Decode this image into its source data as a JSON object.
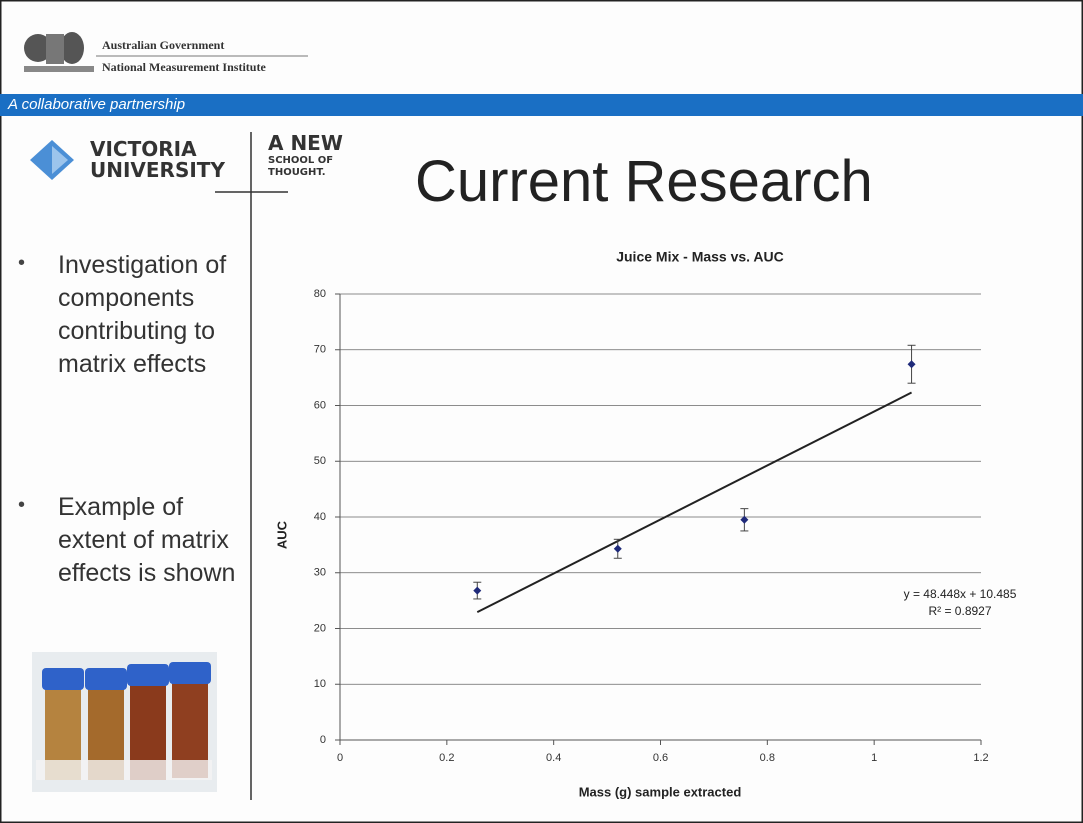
{
  "header": {
    "org_line1": "Australian Government",
    "org_line2": "National Measurement Institute",
    "banner": "A collaborative partnership",
    "uni_line1": "VICTORIA",
    "uni_line2": "UNIVERSITY",
    "tag_line1": "A NEW",
    "tag_line2": "SCHOOL OF",
    "tag_line3": "THOUGHT."
  },
  "title": "Current Research",
  "bullets": [
    "Investigation of components contributing to matrix effects",
    "Example of extent of matrix effects is shown"
  ],
  "chart_data": {
    "type": "scatter",
    "title": "Juice Mix - Mass vs. AUC",
    "x_label": "Mass (g) sample extracted",
    "y_label": "AUC",
    "x": [
      0.257,
      0.52,
      0.757,
      1.07
    ],
    "values": [
      26.8,
      34.3,
      39.5,
      67.4
    ],
    "errors": [
      1.5,
      1.7,
      2.0,
      3.4
    ],
    "color": "#1f2a7a",
    "trendline": {
      "slope": 48.448,
      "intercept": 10.485,
      "color": "#222222"
    },
    "annotations": [
      "y = 48.448x + 10.485",
      "R² = 0.8927"
    ],
    "xlim": [
      0,
      1.2
    ],
    "xticks": [
      0,
      0.2,
      0.4,
      0.6,
      0.8,
      1,
      1.2
    ],
    "ylim": [
      0,
      80
    ],
    "yticks": [
      0,
      10,
      20,
      30,
      40,
      50,
      60,
      70,
      80
    ],
    "grid": true
  }
}
